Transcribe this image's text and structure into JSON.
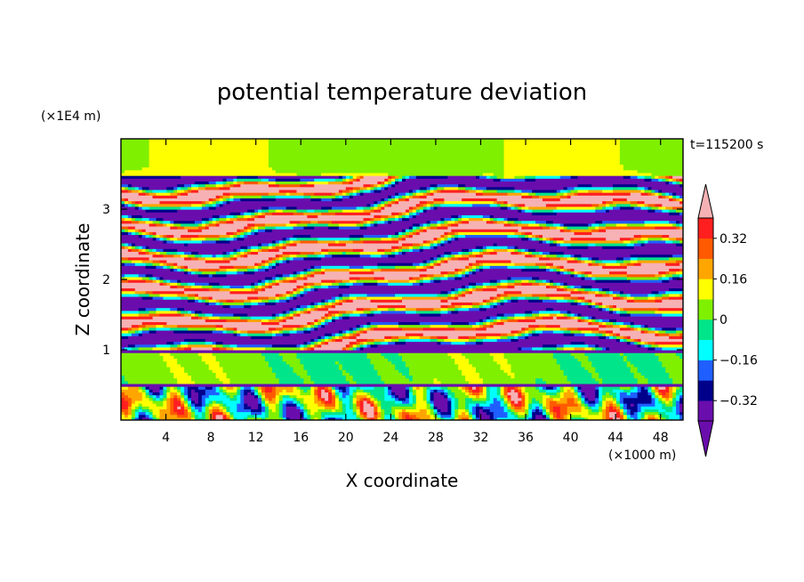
{
  "chart_data": {
    "type": "heatmap",
    "title": "potential temperature deviation",
    "xlabel": "X coordinate",
    "ylabel": "Z coordinate",
    "x_unit": "(×1000 m)",
    "y_unit": "(×1E4 m)",
    "time_label": "t=115200 s",
    "xlim": [
      0,
      50
    ],
    "ylim": [
      0,
      4
    ],
    "x_ticks": [
      4,
      8,
      12,
      16,
      20,
      24,
      28,
      32,
      36,
      40,
      44,
      48
    ],
    "y_ticks": [
      1,
      2,
      3
    ],
    "colorbar": {
      "labels": [
        "0.32",
        "0.16",
        "0",
        "-0.16",
        "-0.32"
      ],
      "label_values": [
        0.32,
        0.16,
        0,
        -0.16,
        -0.32
      ],
      "levels": [
        -0.4,
        -0.32,
        -0.24,
        -0.16,
        -0.08,
        0,
        0.08,
        0.16,
        0.24,
        0.32,
        0.4
      ],
      "colors": [
        "#6a0dad",
        "#00008b",
        "#1f5fff",
        "#00ffff",
        "#00e58a",
        "#7ff000",
        "#ffff00",
        "#ffa500",
        "#ff5a00",
        "#ff1f1f",
        "#f6b1b4"
      ],
      "extend": "both"
    },
    "layers": [
      {
        "z": [
          0.0,
          0.5
        ],
        "pattern": "turbulent mix of all colors near surface"
      },
      {
        "z": [
          0.5,
          1.0
        ],
        "dominant_value": 0.0,
        "pattern": "uniform green band"
      },
      {
        "z": [
          1.0,
          3.5
        ],
        "pattern": "alternating strong positive and negative horizontal bands"
      },
      {
        "z": [
          3.5,
          4.0
        ],
        "dominant_value": 0.05,
        "pattern": "green top with warm blobs near 3.3"
      }
    ]
  }
}
